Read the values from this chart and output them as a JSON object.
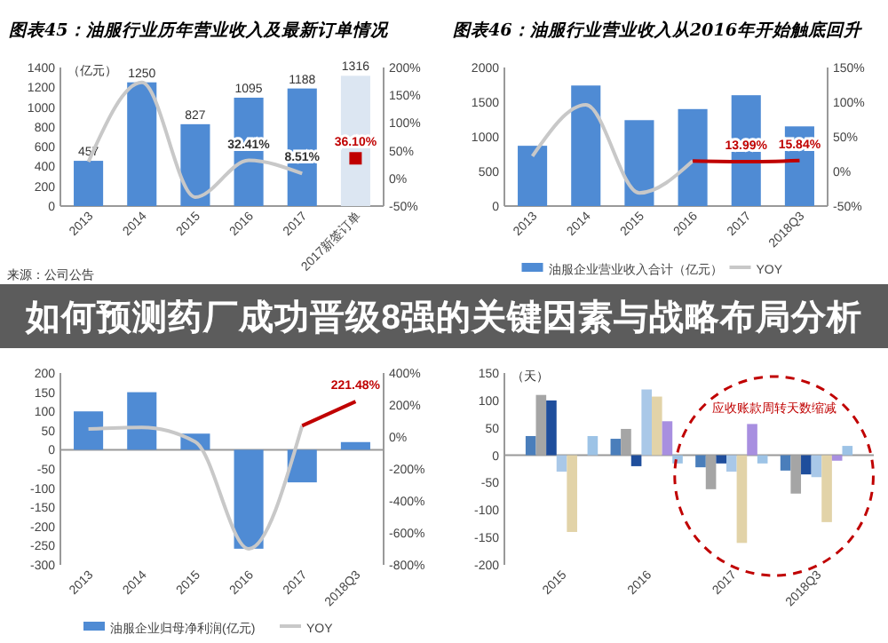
{
  "chart_data": [
    {
      "type": "bar",
      "title": "图表45：油服行业历年营业收入及最新订单情况",
      "ylabel": "（亿元）",
      "categories": [
        "2013",
        "2014",
        "2015",
        "2016",
        "2017",
        "2017新签订单"
      ],
      "ylim": [
        0,
        1400
      ],
      "yticks": [
        0,
        200,
        400,
        600,
        800,
        1000,
        1200,
        1400
      ],
      "y2lim": [
        -50,
        200
      ],
      "y2ticks": [
        {
          "value": -50,
          "label": "-50%"
        },
        {
          "value": 0,
          "label": "0%"
        },
        {
          "value": 50,
          "label": "50%"
        },
        {
          "value": 100,
          "label": "100%"
        },
        {
          "value": 150,
          "label": "150%"
        },
        {
          "value": 200,
          "label": "200%"
        }
      ],
      "data_labels": true,
      "annotations": [
        "来源：公司公告"
      ],
      "series": [
        {
          "type": "bar",
          "colors": [
            "#4f8bd4",
            "#4f8bd4",
            "#4f8bd4",
            "#4f8bd4",
            "#4f8bd4",
            "#dce6f2"
          ],
          "values": [
            457,
            1250,
            827,
            1095,
            1188,
            1316
          ]
        },
        {
          "type": "line",
          "axis": "y2",
          "color": "#c8c8c8",
          "values": [
            30,
            173,
            -34,
            32.41,
            8.51,
            null
          ],
          "value_labels": [
            null,
            null,
            null,
            "32.41%",
            "8.51%",
            null
          ]
        },
        {
          "type": "scatter",
          "axis": "y2",
          "marker": "square",
          "color": "#c00000",
          "values": [
            null,
            null,
            null,
            null,
            null,
            36.1
          ],
          "value_labels": [
            null,
            null,
            null,
            null,
            null,
            "36.10%"
          ]
        }
      ]
    },
    {
      "type": "bar",
      "title": "图表46：油服行业营业收入从2016年开始触底回升",
      "categories": [
        "2013",
        "2014",
        "2015",
        "2016",
        "2017",
        "2018Q3"
      ],
      "ylim": [
        0,
        2000
      ],
      "yticks": [
        0,
        500,
        1000,
        1500,
        2000
      ],
      "y2lim": [
        -50,
        150
      ],
      "y2ticks": [
        {
          "value": -50,
          "label": "-50%"
        },
        {
          "value": 0,
          "label": "0%"
        },
        {
          "value": 50,
          "label": "50%"
        },
        {
          "value": 100,
          "label": "100%"
        },
        {
          "value": 150,
          "label": "150%"
        }
      ],
      "legend": "bottom",
      "series": [
        {
          "type": "bar",
          "name": "油服企业营业收入合计（亿元）",
          "color": "#4f8bd4",
          "values": [
            870,
            1740,
            1240,
            1400,
            1600,
            1150
          ]
        },
        {
          "type": "line",
          "axis": "y2",
          "name": "YOY",
          "color": "#c8c8c8",
          "values": [
            22,
            96,
            -31,
            15,
            null,
            null
          ]
        },
        {
          "type": "line",
          "axis": "y2",
          "color": "#c00000",
          "values": [
            null,
            null,
            null,
            15,
            13.99,
            15.84
          ],
          "value_labels": [
            null,
            null,
            null,
            null,
            "13.99%",
            "15.84%"
          ]
        }
      ]
    },
    {
      "type": "bar",
      "categories": [
        "2013",
        "2014",
        "2015",
        "2016",
        "2017",
        "2018Q3"
      ],
      "ylim": [
        -300,
        200
      ],
      "yticks": [
        -300,
        -250,
        -200,
        -150,
        -100,
        -50,
        0,
        50,
        100,
        150,
        200
      ],
      "y2lim": [
        -800,
        400
      ],
      "y2ticks": [
        {
          "value": -800,
          "label": "-800%"
        },
        {
          "value": -600,
          "label": "-600%"
        },
        {
          "value": -400,
          "label": "-400%"
        },
        {
          "value": -200,
          "label": "-200%"
        },
        {
          "value": 0,
          "label": "0%"
        },
        {
          "value": 200,
          "label": "200%"
        },
        {
          "value": 400,
          "label": "400%"
        }
      ],
      "legend": "bottom",
      "series": [
        {
          "type": "bar",
          "name": "油服企业归母净利润(亿元)",
          "color": "#4f8bd4",
          "values": [
            100,
            150,
            42,
            -258,
            -85,
            20
          ]
        },
        {
          "type": "line",
          "axis": "y2",
          "name": "YOY",
          "color": "#c8c8c8",
          "values": [
            50,
            60,
            -30,
            -700,
            70,
            null
          ]
        },
        {
          "type": "line",
          "axis": "y2",
          "color": "#c00000",
          "values": [
            null,
            null,
            null,
            null,
            70,
            221.48
          ],
          "value_labels": [
            null,
            null,
            null,
            null,
            null,
            "221.48%"
          ]
        }
      ]
    },
    {
      "type": "bar",
      "ylabel": "（天）",
      "categories": [
        "2015",
        "2016",
        "2017",
        "2018Q3"
      ],
      "ylim": [
        -200,
        150
      ],
      "yticks": [
        -200,
        -150,
        -100,
        -50,
        0,
        50,
        100,
        150
      ],
      "annotations": [
        "应收账款周转天数缩减"
      ],
      "series": [
        {
          "color": "#4a7ebb",
          "values": [
            35,
            30,
            -22,
            -28
          ]
        },
        {
          "color": "#a5a5a5",
          "values": [
            110,
            48,
            -62,
            -70
          ]
        },
        {
          "color": "#1f4e9c",
          "values": [
            100,
            -20,
            -15,
            -35
          ]
        },
        {
          "color": "#a9c8e8",
          "values": [
            -30,
            120,
            -30,
            -40
          ]
        },
        {
          "color": "#e2d3a8",
          "values": [
            -140,
            107,
            -160,
            -122
          ]
        },
        {
          "color": "#a88fe0",
          "values": [
            0,
            62,
            57,
            -10
          ]
        },
        {
          "color": "#9dc3e6",
          "values": [
            35,
            -15,
            -15,
            17
          ]
        }
      ]
    },
    {
      "type": "other",
      "title": "如何预测药厂成功晋级8强的关键因素与战略布局分析"
    }
  ]
}
